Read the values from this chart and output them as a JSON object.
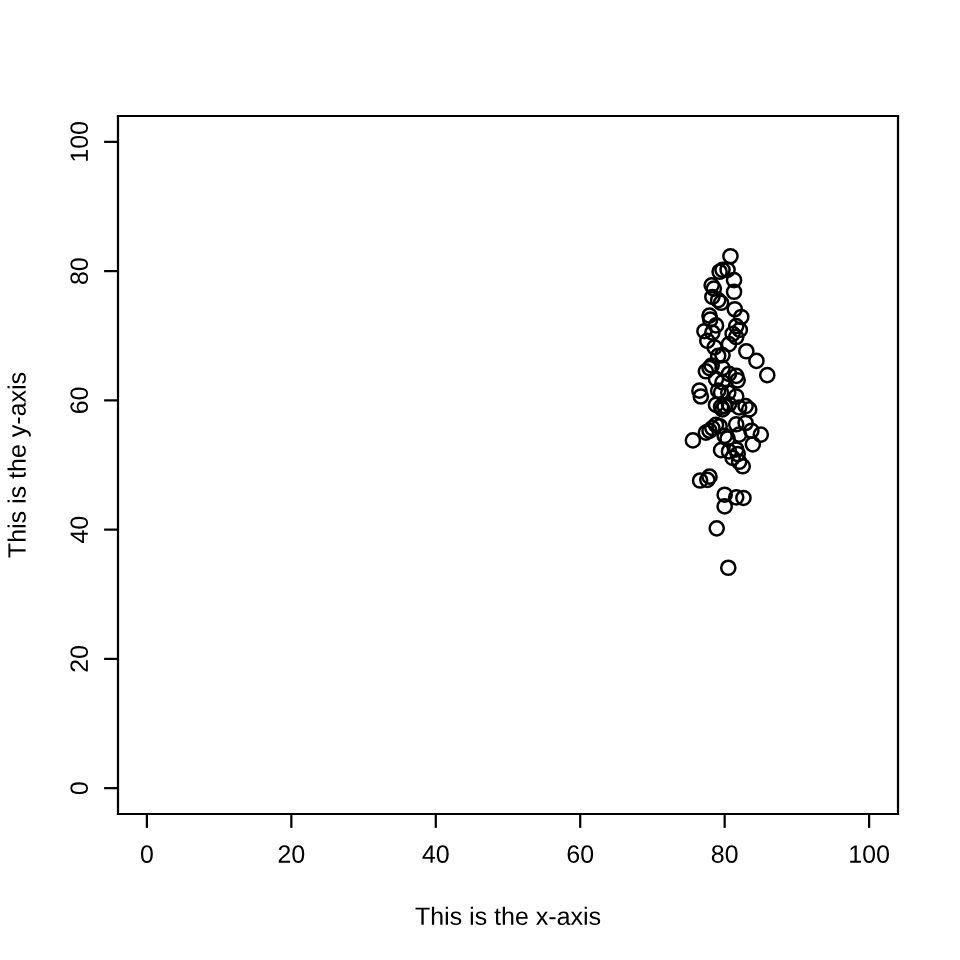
{
  "chart_data": {
    "type": "scatter",
    "xlabel": "This is the x-axis",
    "ylabel": "This is the y-axis",
    "x": [
      80.8,
      79.7,
      80.4,
      79.3,
      81.3,
      81.3,
      78.2,
      78.5,
      78.3,
      79.1,
      79.5,
      81.4,
      82.3,
      77.9,
      78.0,
      78.8,
      81.6,
      82.1,
      77.2,
      78.3,
      81.1,
      81.6,
      77.6,
      80.6,
      78.6,
      83.0,
      79.1,
      79.7,
      84.4,
      78.2,
      77.9,
      77.4,
      79.7,
      85.9,
      80.6,
      81.6,
      81.8,
      78.8,
      79.7,
      79.1,
      79.5,
      76.5,
      76.7,
      81.6,
      80.5,
      78.8,
      79.5,
      80.0,
      80.6,
      79.7,
      82.0,
      82.9,
      83.4,
      82.9,
      81.6,
      78.8,
      78.3,
      77.9,
      77.4,
      79.3,
      80.0,
      80.4,
      83.7,
      85.0,
      82.0,
      75.6,
      83.9,
      79.5,
      80.6,
      81.6,
      81.8,
      81.1,
      82.0,
      82.5,
      77.9,
      76.6,
      77.6,
      80.0,
      81.6,
      82.6,
      80.0,
      78.9,
      80.5
    ],
    "values": [
      82.3,
      80.2,
      80.2,
      79.9,
      78.6,
      76.8,
      77.8,
      77.3,
      76.0,
      75.5,
      75.1,
      74.1,
      72.9,
      73.1,
      72.5,
      71.6,
      71.5,
      70.9,
      70.7,
      70.5,
      70.3,
      69.8,
      69.2,
      68.7,
      68.2,
      67.6,
      66.9,
      67.0,
      66.1,
      65.4,
      65.0,
      64.5,
      65.0,
      63.9,
      64.1,
      63.8,
      63.1,
      63.3,
      62.8,
      61.5,
      61.2,
      61.5,
      60.6,
      60.6,
      61.2,
      59.3,
      59.0,
      59.1,
      59.4,
      58.6,
      58.9,
      59.1,
      58.6,
      56.5,
      56.3,
      56.2,
      55.7,
      55.3,
      55.0,
      56.0,
      54.5,
      54.1,
      55.3,
      54.7,
      54.7,
      53.8,
      53.2,
      52.3,
      52.1,
      52.4,
      51.7,
      51.1,
      50.5,
      49.8,
      48.2,
      47.6,
      47.7,
      45.4,
      45.0,
      44.9,
      43.6,
      40.2,
      34.1
    ],
    "color": "#000000",
    "marker": "circle",
    "xlim": [
      -4,
      104
    ],
    "ylim": [
      -4,
      104
    ],
    "xticks": [
      0,
      20,
      40,
      60,
      80,
      100
    ],
    "yticks": [
      0,
      20,
      40,
      60,
      80,
      100
    ]
  }
}
